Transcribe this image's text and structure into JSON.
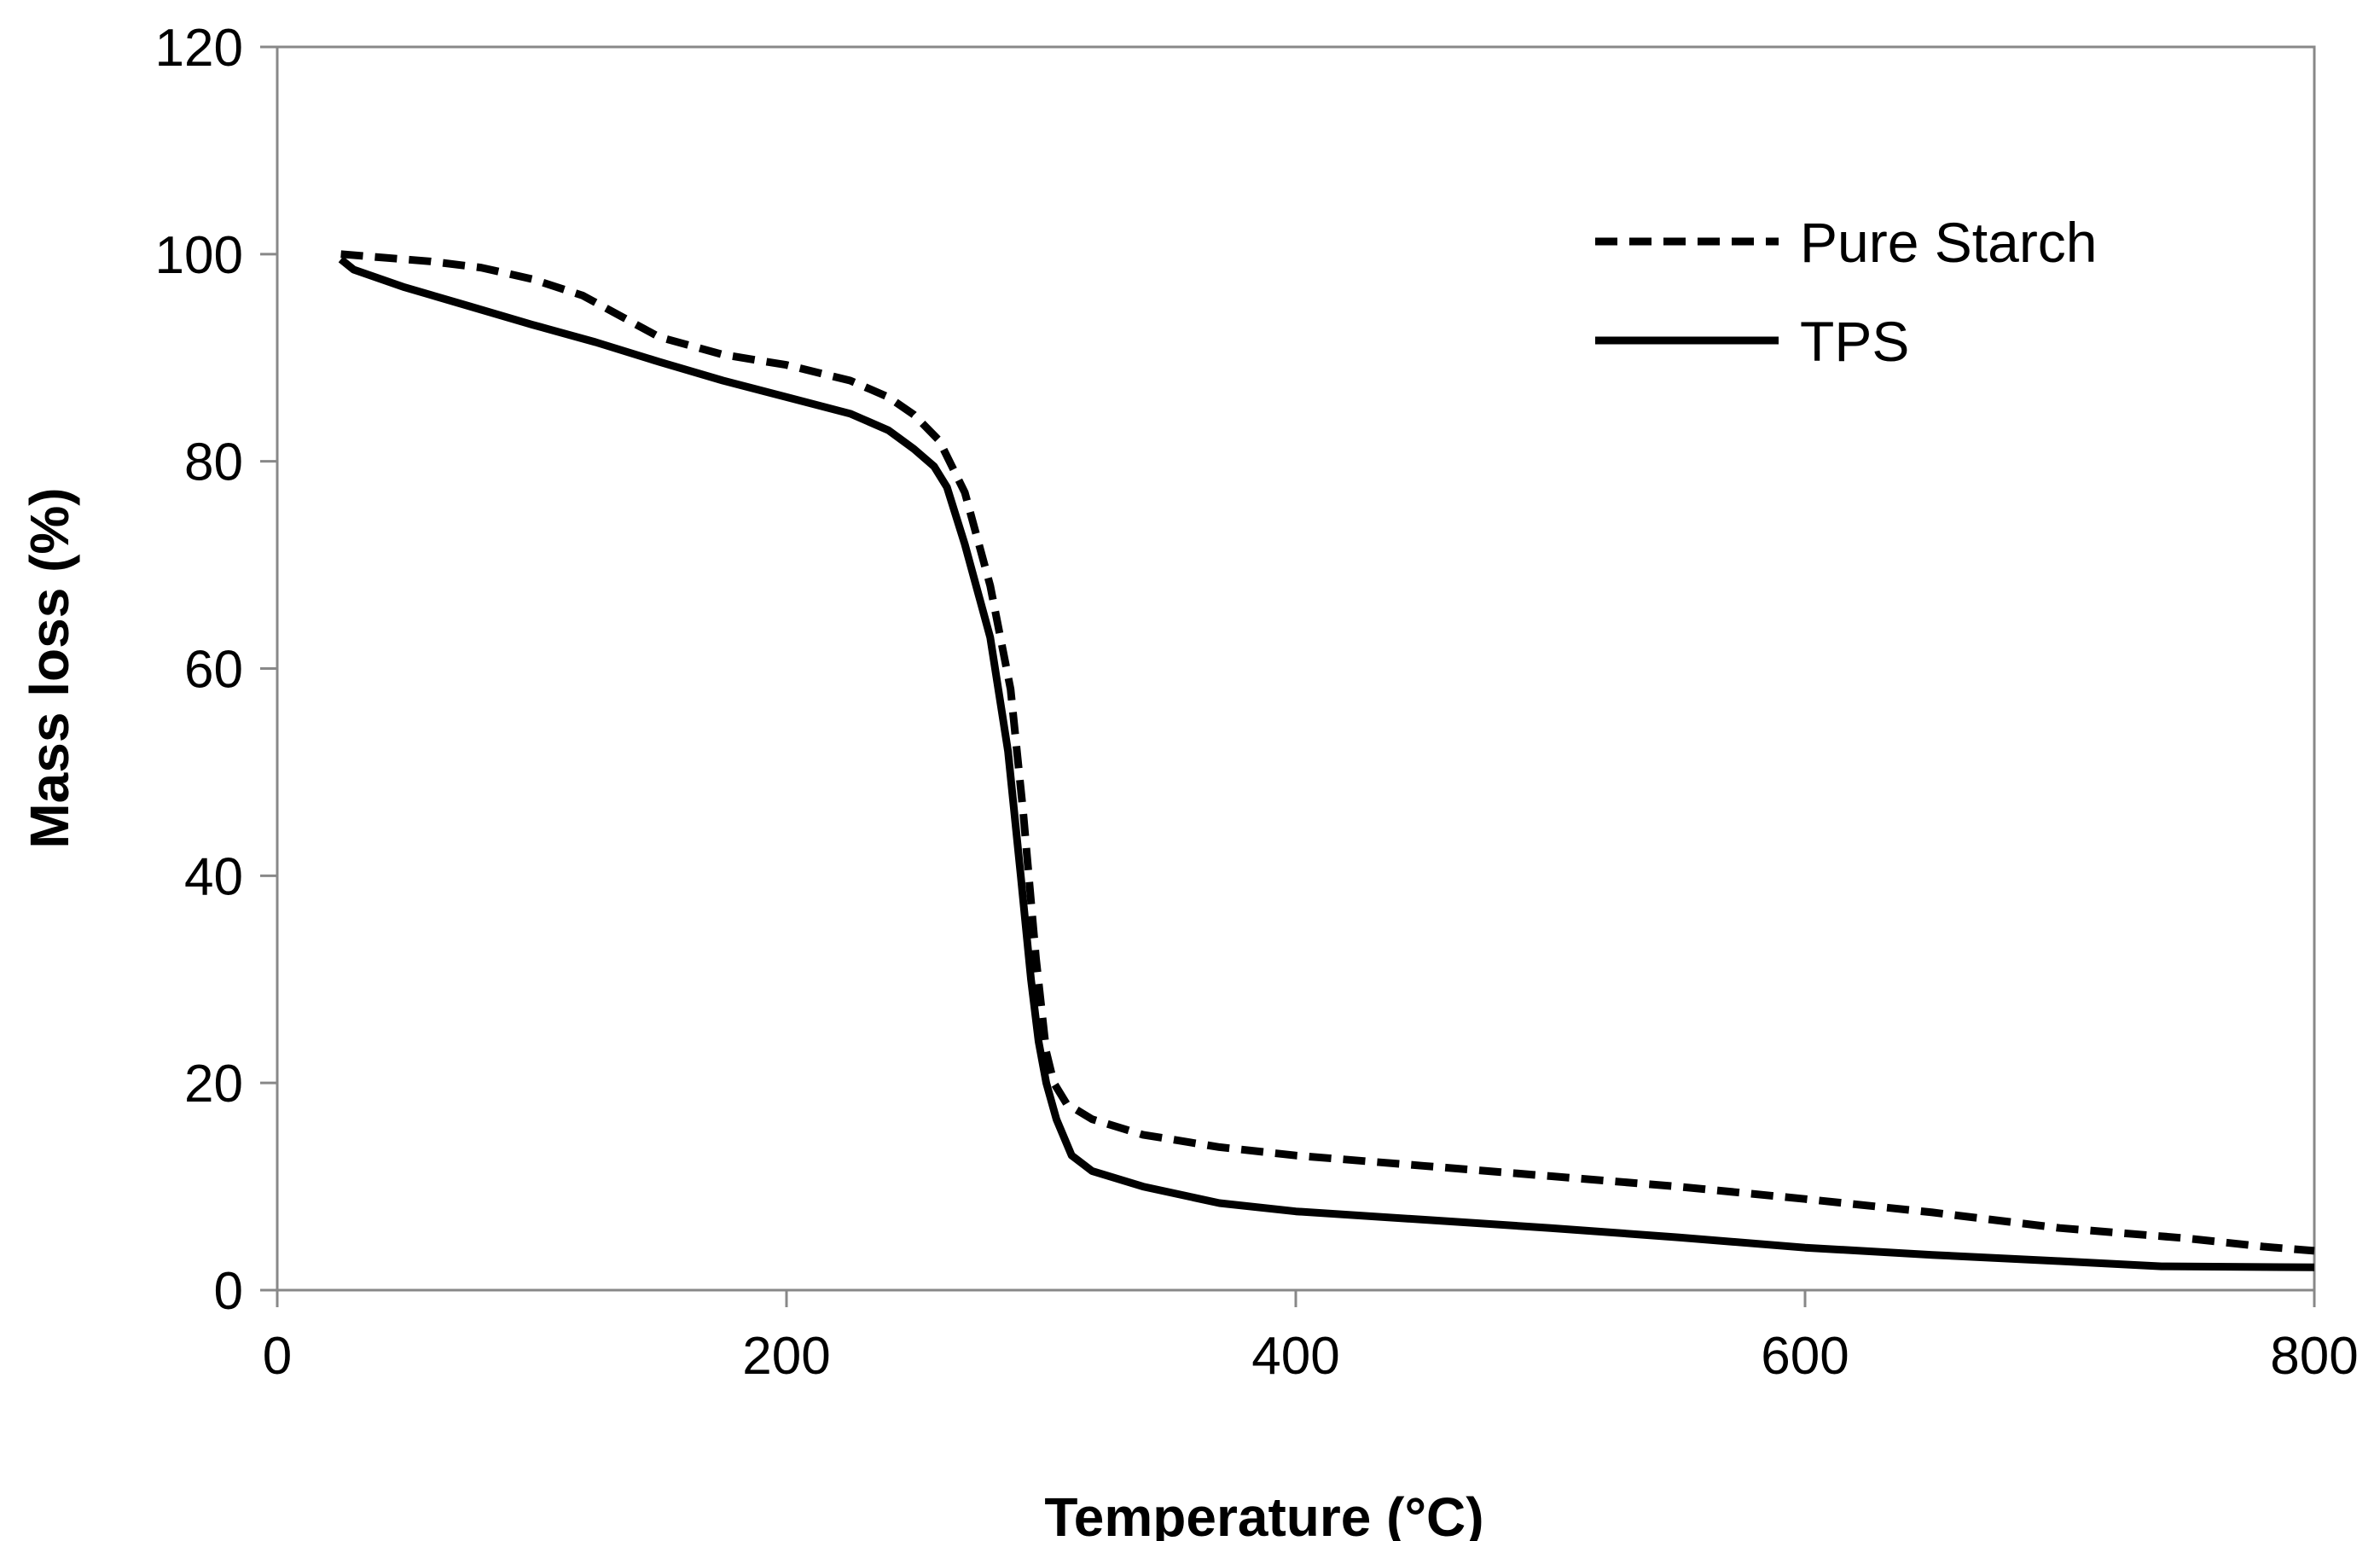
{
  "chart_data": {
    "type": "line",
    "title": "",
    "xlabel": "Temperature (°C)",
    "ylabel": "Mass loss (%)",
    "xlim": [
      0,
      800
    ],
    "ylim": [
      0,
      120
    ],
    "xticks": [
      0,
      200,
      400,
      600,
      800
    ],
    "yticks": [
      0,
      20,
      40,
      60,
      80,
      100,
      120
    ],
    "xtick_labels": [
      "0",
      "200",
      "400",
      "600",
      "800"
    ],
    "ytick_labels": [
      "0",
      "20",
      "40",
      "60",
      "80",
      "100",
      "120"
    ],
    "grid": false,
    "legend_position": "top-right",
    "series": [
      {
        "name": "Pure Starch",
        "style": "dashed",
        "color": "#000000",
        "x": [
          25,
          40,
          60,
          80,
          100,
          120,
          135,
          150,
          175,
          200,
          225,
          240,
          250,
          260,
          270,
          280,
          288,
          293,
          298,
          302,
          305,
          310,
          320,
          340,
          370,
          400,
          450,
          500,
          550,
          600,
          650,
          700,
          750,
          780,
          800
        ],
        "y": [
          100,
          99.7,
          99.3,
          98.7,
          97.6,
          96,
          94,
          92,
          90.3,
          89.3,
          87.8,
          86.2,
          84.5,
          82,
          77,
          68,
          58,
          46,
          32,
          23,
          20,
          18,
          16.5,
          15,
          13.8,
          13,
          12,
          11,
          10,
          8.8,
          7.5,
          6,
          5,
          4.2,
          3.8
        ]
      },
      {
        "name": "TPS",
        "style": "solid",
        "color": "#000000",
        "x": [
          25,
          30,
          50,
          75,
          100,
          125,
          150,
          175,
          200,
          225,
          240,
          250,
          258,
          263,
          270,
          280,
          287,
          292,
          296,
          299,
          302,
          306,
          312,
          320,
          340,
          370,
          400,
          450,
          500,
          550,
          600,
          650,
          700,
          740,
          800
        ],
        "y": [
          99.5,
          98.5,
          96.8,
          95,
          93.2,
          91.5,
          89.6,
          87.8,
          86.2,
          84.6,
          83,
          81.2,
          79.5,
          77.5,
          72,
          63,
          52,
          40,
          30,
          24,
          20,
          16.5,
          13,
          11.5,
          10,
          8.4,
          7.6,
          6.8,
          6,
          5.1,
          4.1,
          3.4,
          2.8,
          2.3,
          2.2
        ]
      }
    ]
  }
}
